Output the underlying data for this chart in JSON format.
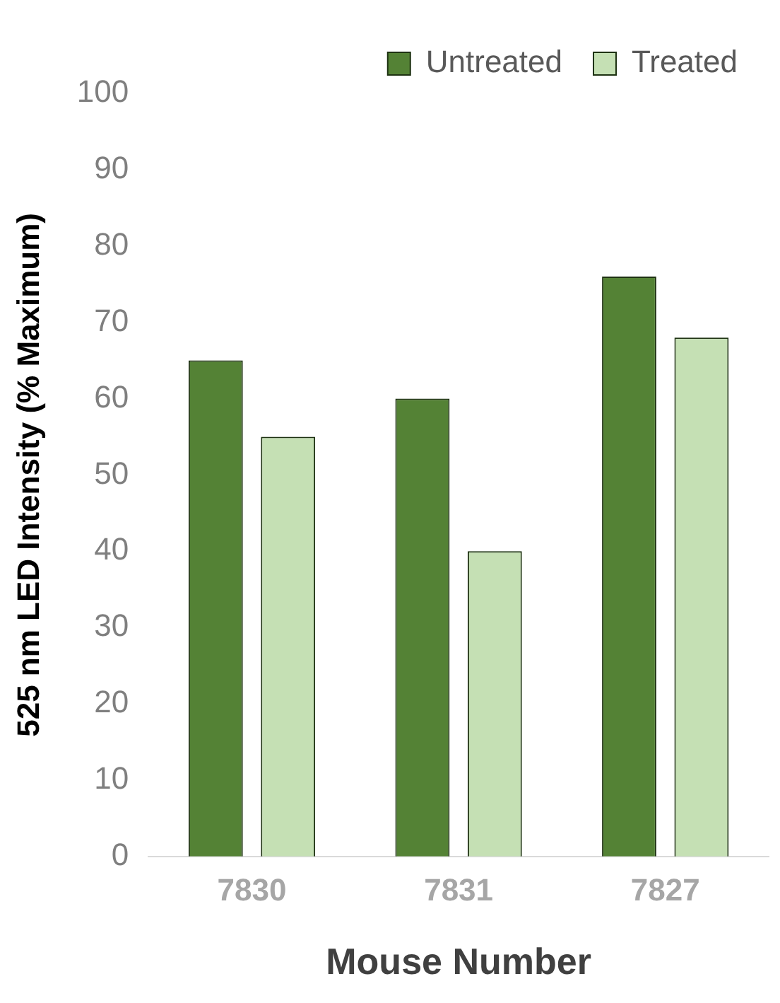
{
  "chart_data": {
    "type": "bar",
    "xlabel": "Mouse Number",
    "ylabel": "525 nm LED Intensity (% Maximum)",
    "categories": [
      "7830",
      "7831",
      "7827"
    ],
    "series": [
      {
        "name": "Untreated",
        "color": "#548235",
        "values": [
          65,
          60,
          76
        ]
      },
      {
        "name": "Treated",
        "color": "#c5e0b4",
        "values": [
          55,
          40,
          68
        ]
      }
    ],
    "ylim": [
      0,
      100
    ],
    "yticks": [
      0,
      10,
      20,
      30,
      40,
      50,
      60,
      70,
      80,
      90,
      100
    ],
    "grid": false,
    "legend": "top right"
  }
}
